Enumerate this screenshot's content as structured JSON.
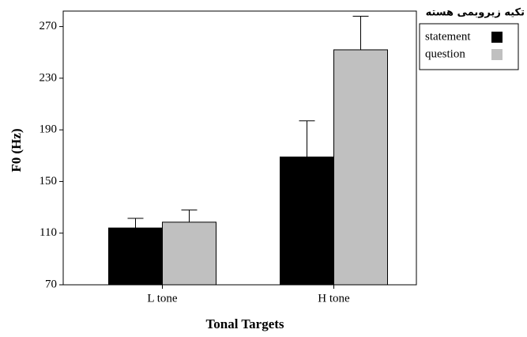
{
  "chart_data": {
    "type": "bar",
    "x_label": "Tonal Targets",
    "y_label": "F0 (Hz)",
    "legend_title": "تکیه زیروبمی هسته",
    "categories": [
      "L tone",
      "H tone"
    ],
    "series": [
      {
        "name": "statement",
        "color": "#000000",
        "values": [
          114,
          169
        ],
        "errors": [
          7.5,
          28
        ]
      },
      {
        "name": "question",
        "color": "#c0c0c0",
        "values": [
          118.5,
          252
        ],
        "errors": [
          9.5,
          26
        ]
      }
    ],
    "ylim": [
      70,
      282
    ],
    "yticks": [
      70,
      110,
      150,
      190,
      230,
      270
    ],
    "legend": "right",
    "grid": false
  }
}
